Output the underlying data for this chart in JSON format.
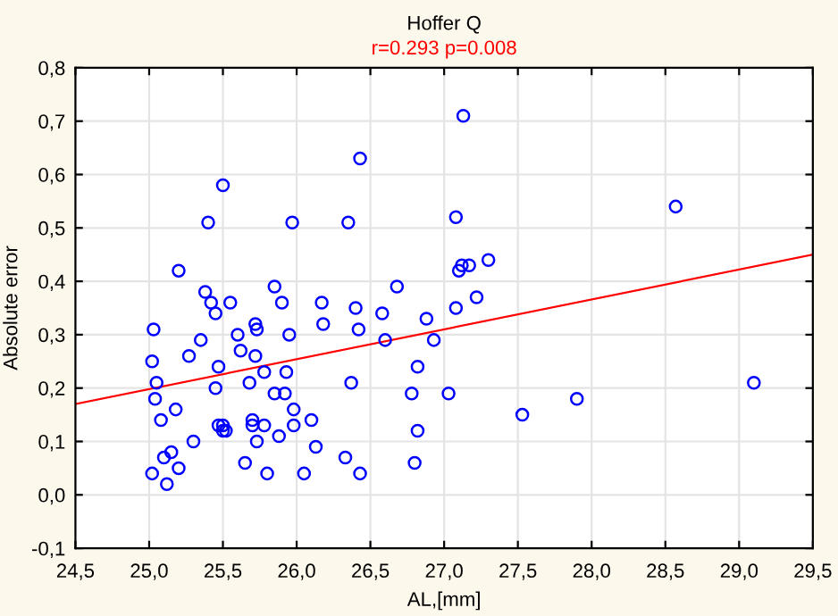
{
  "chart_data": {
    "type": "scatter",
    "title": "Hoffer Q",
    "subtitle": "r=0.293 p=0.008",
    "xlabel": "AL,[mm]",
    "ylabel": "Absolute error",
    "xlim": [
      24.5,
      29.5
    ],
    "ylim": [
      -0.1,
      0.8
    ],
    "xticks": [
      {
        "value": 24.5,
        "label": "24,5"
      },
      {
        "value": 25,
        "label": "25,0"
      },
      {
        "value": 25.5,
        "label": "25,5"
      },
      {
        "value": 26,
        "label": "26,0"
      },
      {
        "value": 26.5,
        "label": "26,5"
      },
      {
        "value": 27,
        "label": "27,0"
      },
      {
        "value": 27.5,
        "label": "27,5"
      },
      {
        "value": 28,
        "label": "28,0"
      },
      {
        "value": 28.5,
        "label": "28,5"
      },
      {
        "value": 29,
        "label": "29,0"
      },
      {
        "value": 29.5,
        "label": "29,5"
      }
    ],
    "yticks": [
      {
        "value": -0.1,
        "label": "-0,1"
      },
      {
        "value": 0,
        "label": "0,0"
      },
      {
        "value": 0.1,
        "label": "0,1"
      },
      {
        "value": 0.2,
        "label": "0,2"
      },
      {
        "value": 0.3,
        "label": "0,3"
      },
      {
        "value": 0.4,
        "label": "0,4"
      },
      {
        "value": 0.5,
        "label": "0,5"
      },
      {
        "value": 0.6,
        "label": "0,6"
      },
      {
        "value": 0.7,
        "label": "0,7"
      },
      {
        "value": 0.8,
        "label": "0,8"
      }
    ],
    "grid": true,
    "series": [
      {
        "marker": "circle",
        "color": "#0000ff",
        "x": [
          25.03,
          25.02,
          25.05,
          25.04,
          25.02,
          25.08,
          25.12,
          25.1,
          25.15,
          25.18,
          25.2,
          25.2,
          25.27,
          25.3,
          25.35,
          25.38,
          25.4,
          25.42,
          25.45,
          25.45,
          25.47,
          25.5,
          25.47,
          25.5,
          25.5,
          25.52,
          25.55,
          25.6,
          25.62,
          25.65,
          25.68,
          25.7,
          25.7,
          25.72,
          25.72,
          25.73,
          25.73,
          25.78,
          25.78,
          25.8,
          25.85,
          25.85,
          25.88,
          25.9,
          25.92,
          25.93,
          25.95,
          25.97,
          25.98,
          25.98,
          26.05,
          26.1,
          26.13,
          26.18,
          26.17,
          26.33,
          26.35,
          26.37,
          26.4,
          26.42,
          26.43,
          26.43,
          26.58,
          26.6,
          26.68,
          26.78,
          26.8,
          26.82,
          26.82,
          26.88,
          26.93,
          27.03,
          27.08,
          27.1,
          27.12,
          27.08,
          27.17,
          27.22,
          27.3,
          27.13,
          27.53,
          27.9,
          28.57,
          29.1
        ],
        "values": [
          0.31,
          0.25,
          0.21,
          0.18,
          0.04,
          0.14,
          0.02,
          0.07,
          0.08,
          0.16,
          0.42,
          0.05,
          0.26,
          0.1,
          0.29,
          0.38,
          0.51,
          0.36,
          0.34,
          0.2,
          0.13,
          0.58,
          0.24,
          0.12,
          0.13,
          0.12,
          0.36,
          0.3,
          0.27,
          0.06,
          0.21,
          0.13,
          0.14,
          0.26,
          0.32,
          0.1,
          0.31,
          0.13,
          0.23,
          0.04,
          0.39,
          0.19,
          0.11,
          0.36,
          0.19,
          0.23,
          0.3,
          0.51,
          0.13,
          0.16,
          0.04,
          0.14,
          0.09,
          0.32,
          0.36,
          0.07,
          0.51,
          0.21,
          0.35,
          0.31,
          0.04,
          0.63,
          0.34,
          0.29,
          0.39,
          0.19,
          0.06,
          0.24,
          0.12,
          0.33,
          0.29,
          0.19,
          0.52,
          0.42,
          0.43,
          0.35,
          0.43,
          0.37,
          0.44,
          0.71,
          0.15,
          0.18,
          0.54,
          0.21
        ]
      },
      {
        "type": "line",
        "color": "#ff0000",
        "x": [
          24.5,
          29.5
        ],
        "values": [
          0.17,
          0.45
        ]
      }
    ]
  }
}
